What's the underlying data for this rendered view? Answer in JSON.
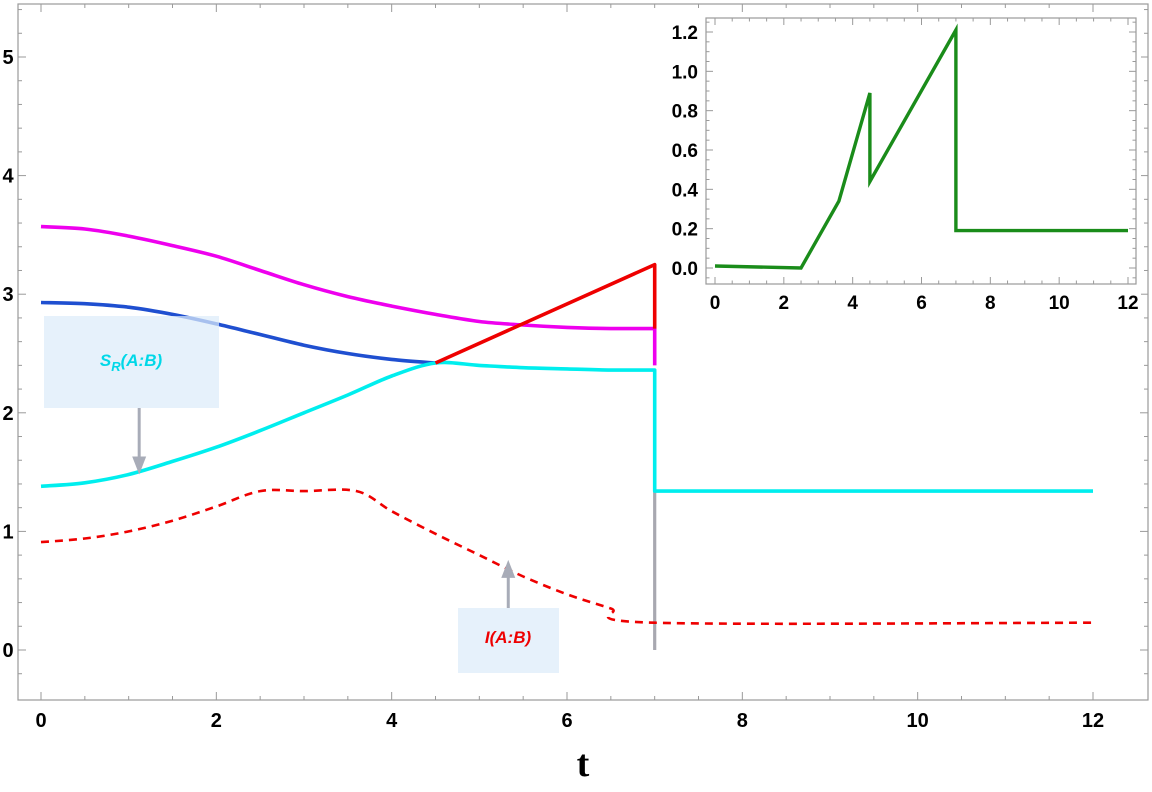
{
  "chart_data": [
    {
      "type": "line",
      "title": "",
      "xlabel": "t",
      "ylabel": "",
      "xlim": [
        0,
        12
      ],
      "ylim": [
        -0.4,
        5.4
      ],
      "x_ticks": [
        0,
        2,
        4,
        6,
        8,
        10,
        12
      ],
      "x_tick_labels": [
        "0",
        "2",
        "4",
        "6",
        "8",
        "10",
        "12"
      ],
      "y_ticks": [
        0,
        1,
        2,
        3,
        4,
        5
      ],
      "y_tick_labels": [
        "0",
        "1",
        "2",
        "3",
        "4",
        "5"
      ],
      "grid": false,
      "series": [
        {
          "color": "#ee00ee",
          "style": "solid",
          "x": [
            0,
            0.5,
            1,
            1.5,
            2,
            2.5,
            3,
            3.5,
            4,
            4.5,
            5,
            5.5,
            6,
            6.5,
            7,
            7
          ],
          "y": [
            3.57,
            3.55,
            3.49,
            3.41,
            3.32,
            3.2,
            3.08,
            2.98,
            2.9,
            2.83,
            2.77,
            2.74,
            2.72,
            2.71,
            2.71,
            2.4
          ]
        },
        {
          "color": "#1f4fd0",
          "style": "solid",
          "x": [
            0,
            0.5,
            1,
            1.5,
            2,
            2.5,
            3,
            3.5,
            4,
            4.5
          ],
          "y": [
            2.93,
            2.92,
            2.89,
            2.83,
            2.75,
            2.66,
            2.57,
            2.5,
            2.45,
            2.42
          ]
        },
        {
          "name": "S_R(A:B)",
          "color": "#00eeee",
          "style": "solid",
          "x": [
            0,
            0.5,
            1,
            1.5,
            2,
            2.5,
            3,
            3.5,
            4,
            4.5,
            5,
            5.5,
            6,
            6.5,
            7,
            7,
            12
          ],
          "y": [
            1.38,
            1.41,
            1.48,
            1.59,
            1.71,
            1.85,
            2.0,
            2.15,
            2.31,
            2.42,
            2.4,
            2.38,
            2.37,
            2.36,
            2.36,
            1.34,
            1.34
          ]
        },
        {
          "color": "#ee0000",
          "style": "solid",
          "x": [
            4.5,
            7,
            7
          ],
          "y": [
            2.42,
            3.25,
            2.71
          ]
        },
        {
          "name": "I(A:B)",
          "color": "#ee0000",
          "style": "dashed",
          "x": [
            0,
            0.5,
            1,
            1.5,
            2,
            2.5,
            3,
            3.6,
            4,
            4.5,
            5,
            5.5,
            6,
            6.5,
            7,
            12
          ],
          "y": [
            0.91,
            0.94,
            1.0,
            1.09,
            1.21,
            1.34,
            1.34,
            1.34,
            1.17,
            0.98,
            0.8,
            0.62,
            0.47,
            0.35,
            0.23,
            0.23
          ]
        },
        {
          "color": "#a8a8b0",
          "style": "solid",
          "x": [
            7,
            7
          ],
          "y": [
            0,
            1.34
          ]
        }
      ],
      "annotations": [
        {
          "text_main": "S",
          "text_sub": "R",
          "text_rest": "(A:B)",
          "color": "#00d8e8",
          "arrow_direction": "down",
          "arrow_target": [
            1.12,
            1.48
          ]
        },
        {
          "text_main": "I",
          "text_sub": "",
          "text_rest": "(A:B)",
          "color": "#ee0000",
          "arrow_direction": "up",
          "arrow_target": [
            5.33,
            0.76
          ]
        }
      ]
    },
    {
      "type": "line",
      "title": "",
      "xlabel": "",
      "ylabel": "",
      "xlim": [
        -0.3,
        12.3
      ],
      "ylim": [
        -0.12,
        1.26
      ],
      "x_ticks": [
        0,
        2,
        4,
        6,
        8,
        10,
        12
      ],
      "x_tick_labels": [
        "0",
        "2",
        "4",
        "6",
        "8",
        "10",
        "12"
      ],
      "y_ticks": [
        0,
        0.2,
        0.4,
        0.6,
        0.8,
        1.0,
        1.2
      ],
      "y_tick_labels": [
        "0.0",
        "0.2",
        "0.4",
        "0.6",
        "0.8",
        "1.0",
        "1.2"
      ],
      "grid": false,
      "series": [
        {
          "color": "#1a8c1a",
          "style": "solid",
          "x": [
            0,
            2.5,
            3.6,
            4.5,
            4.5,
            7,
            7,
            12
          ],
          "y": [
            0.01,
            0.0,
            0.34,
            0.89,
            0.44,
            1.21,
            0.19,
            0.19
          ]
        }
      ]
    }
  ]
}
